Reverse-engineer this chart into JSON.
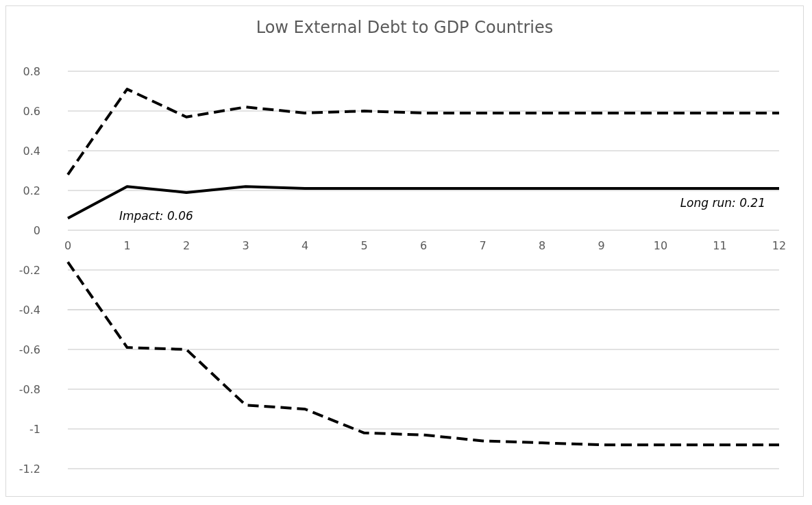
{
  "chart_data": {
    "type": "line",
    "title": "Low External Debt to GDP Countries",
    "x": [
      0,
      1,
      2,
      3,
      4,
      5,
      6,
      7,
      8,
      9,
      10,
      11,
      12
    ],
    "series": [
      {
        "color": "#000000",
        "line_style": "dashed",
        "values": [
          0.28,
          0.71,
          0.57,
          0.62,
          0.59,
          0.6,
          0.59,
          0.59,
          0.59,
          0.59,
          0.59,
          0.59,
          0.59
        ]
      },
      {
        "color": "#000000",
        "line_style": "solid",
        "values": [
          0.06,
          0.22,
          0.19,
          0.22,
          0.21,
          0.21,
          0.21,
          0.21,
          0.21,
          0.21,
          0.21,
          0.21,
          0.21
        ]
      },
      {
        "color": "#000000",
        "line_style": "dashed",
        "values": [
          -0.16,
          -0.59,
          -0.6,
          -0.88,
          -0.9,
          -1.02,
          -1.03,
          -1.06,
          -1.07,
          -1.08,
          -1.08,
          -1.08,
          -1.08
        ]
      }
    ],
    "xlim": [
      0,
      12
    ],
    "xticks": [
      0,
      1,
      2,
      3,
      4,
      5,
      6,
      7,
      8,
      9,
      10,
      11,
      12
    ],
    "ylim": [
      -1.2,
      0.8
    ],
    "yticks": [
      -1.2,
      -1,
      -0.8,
      -0.6,
      -0.4,
      -0.2,
      0,
      0.2,
      0.4,
      0.6,
      0.8
    ],
    "grid": "y",
    "marker": "none",
    "annotations": [
      "Impact: 0.06",
      {
        "text": "Long run: 0.21",
        "x": 12,
        "y": 0.21
      }
    ]
  }
}
